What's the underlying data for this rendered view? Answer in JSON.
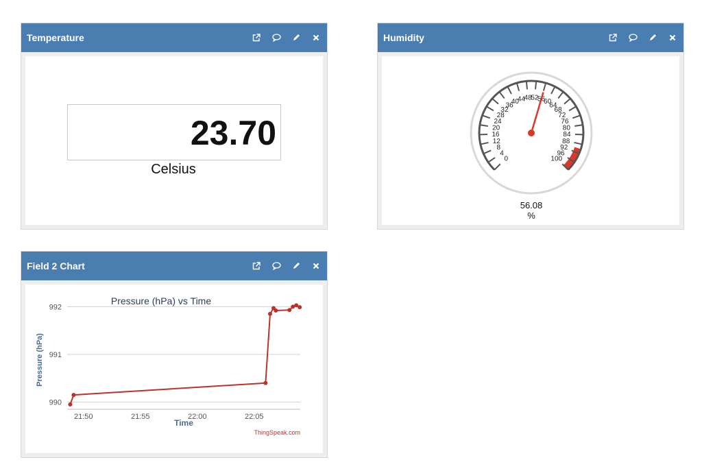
{
  "panels": {
    "temperature": {
      "title": "Temperature",
      "value": "23.70",
      "unit": "Celsius"
    },
    "humidity": {
      "title": "Humidity",
      "value": "56.08",
      "unit": "%",
      "gauge": {
        "min": 0,
        "max": 100,
        "value": 56.08,
        "tick_labels": [
          "0",
          "4",
          "8",
          "12",
          "16",
          "20",
          "24",
          "28",
          "32",
          "36",
          "40",
          "44",
          "48",
          "52",
          "56",
          "60",
          "64",
          "68",
          "72",
          "76",
          "80",
          "84",
          "88",
          "92",
          "96",
          "100"
        ],
        "danger_band": [
          90,
          100
        ],
        "danger_color": "#d9382b",
        "needle_color": "#d9382b"
      }
    },
    "chart": {
      "title": "Field 2 Chart"
    }
  },
  "header_icons": [
    "external-link-icon",
    "comment-icon",
    "pencil-icon",
    "close-icon"
  ],
  "header_color": "#4a7db0",
  "chart_data": {
    "type": "line",
    "title": "Pressure (hPa) vs Time",
    "xlabel": "Time",
    "ylabel": "Pressure (hPa)",
    "credit": "ThingSpeak.com",
    "x_ticks": [
      "21:50",
      "21:55",
      "22:00",
      "22:05"
    ],
    "y_ticks": [
      990,
      991,
      992
    ],
    "ylim": [
      989.85,
      992.15
    ],
    "xlim": [
      "21:48:34",
      "22:09:03"
    ],
    "grid": true,
    "line_color": "#c0302a",
    "series": [
      {
        "x": [
          "21:48:50",
          "21:49:08",
          "22:06:00",
          "22:06:24",
          "22:06:42",
          "22:06:54",
          "22:08:06",
          "22:08:24",
          "22:08:42",
          "22:09:00"
        ],
        "y": [
          989.95,
          990.15,
          990.4,
          991.85,
          991.97,
          991.92,
          991.93,
          992.0,
          992.03,
          991.99
        ]
      }
    ]
  }
}
